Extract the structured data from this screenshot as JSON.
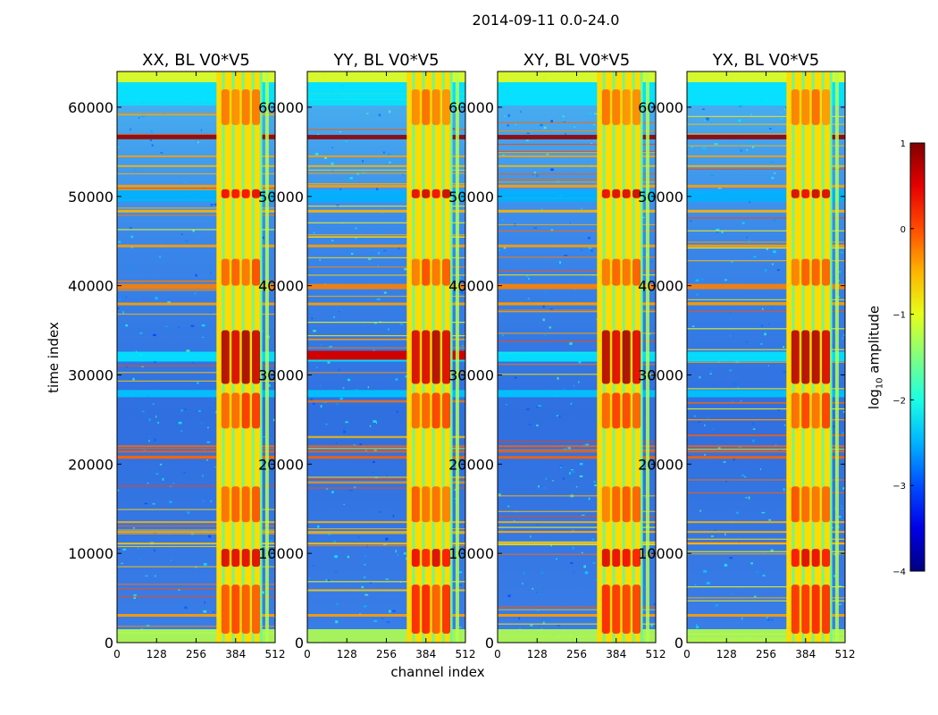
{
  "figure": {
    "suptitle": "2014-09-11 0.0-24.0",
    "ylabel": "time index",
    "xlabel": "channel index",
    "colorbar_label_prefix": "log",
    "colorbar_label_sub": "10",
    "colorbar_label_suffix": " amplitude"
  },
  "chart_data": {
    "type": "heatmap",
    "colormap": "jet",
    "panels": [
      {
        "title": "XX, BL V0*V5",
        "pol": "XX"
      },
      {
        "title": "YY, BL V0*V5",
        "pol": "YY"
      },
      {
        "title": "XY, BL V0*V5",
        "pol": "XY"
      },
      {
        "title": "YX, BL V0*V5",
        "pol": "YX"
      }
    ],
    "x": {
      "label": "channel index",
      "range": [
        0,
        512
      ],
      "ticks": [
        0,
        128,
        256,
        384,
        512
      ],
      "tick_labels": [
        "0",
        "128",
        "256",
        "384",
        "512"
      ]
    },
    "y": {
      "label": "time index",
      "range": [
        0,
        64000
      ],
      "ticks": [
        0,
        10000,
        20000,
        30000,
        40000,
        50000,
        60000
      ],
      "tick_labels": [
        "0",
        "10000",
        "20000",
        "30000",
        "40000",
        "50000",
        "60000"
      ]
    },
    "colorbar": {
      "range": [
        -4,
        1
      ],
      "ticks": [
        -4,
        -3,
        -2,
        -1,
        0,
        1
      ],
      "tick_labels": [
        "−4",
        "−3",
        "−2",
        "−1",
        "0",
        "1"
      ],
      "label": "log10 amplitude"
    }
  }
}
